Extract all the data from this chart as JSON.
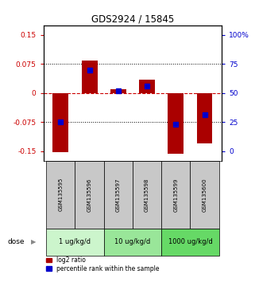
{
  "title": "GDS2924 / 15845",
  "samples": [
    "GSM135595",
    "GSM135596",
    "GSM135597",
    "GSM135598",
    "GSM135599",
    "GSM135600"
  ],
  "log2_ratio": [
    -0.153,
    0.085,
    0.01,
    0.035,
    -0.157,
    -0.13
  ],
  "percentile_scaled": [
    -0.075,
    0.06,
    0.005,
    0.018,
    -0.08,
    -0.055
  ],
  "ylim": [
    -0.175,
    0.175
  ],
  "yticks_left": [
    -0.15,
    -0.075,
    0,
    0.075,
    0.15
  ],
  "yticks_right_labels": [
    "0",
    "25",
    "50",
    "75",
    "100%"
  ],
  "yticks_right_vals": [
    -0.15,
    -0.075,
    0,
    0.075,
    0.15
  ],
  "groups": [
    {
      "label": "1 ug/kg/d",
      "cols": [
        0,
        1
      ],
      "color": "#ccf5cc"
    },
    {
      "label": "10 ug/kg/d",
      "cols": [
        2,
        3
      ],
      "color": "#99e699"
    },
    {
      "label": "1000 ug/kg/d",
      "cols": [
        4,
        5
      ],
      "color": "#66d966"
    }
  ],
  "bar_color": "#aa0000",
  "dot_color": "#0000cc",
  "hline_color": "#cc0000",
  "dot_color_grid": "#000000",
  "left_tick_color": "#cc0000",
  "right_tick_color": "#0000cc",
  "bar_width": 0.55,
  "dot_size": 4,
  "sample_box_color": "#c8c8c8",
  "dose_label": "dose",
  "legend_red": "log2 ratio",
  "legend_blue": "percentile rank within the sample"
}
